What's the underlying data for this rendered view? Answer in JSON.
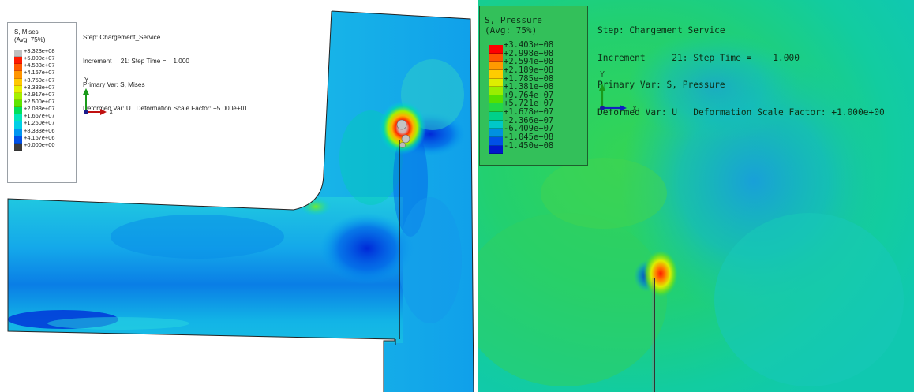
{
  "left": {
    "legend": {
      "title_line1": "S, Mises",
      "title_line2": "(Avg: 75%)",
      "labels": [
        "+3.323e+08",
        "+5.000e+07",
        "+4.583e+07",
        "+4.167e+07",
        "+3.750e+07",
        "+3.333e+07",
        "+2.917e+07",
        "+2.500e+07",
        "+2.083e+07",
        "+1.667e+07",
        "+1.250e+07",
        "+8.333e+06",
        "+4.167e+06",
        "+0.000e+00"
      ],
      "colors": [
        "#c0c0c0",
        "#ff1a00",
        "#ff5a00",
        "#ff9500",
        "#ffc800",
        "#e6f000",
        "#a6f000",
        "#5ee600",
        "#00e05a",
        "#00e6b8",
        "#00cfe6",
        "#0096f0",
        "#0050e6",
        "#3c3c3c"
      ]
    },
    "info": {
      "step": "Step: Chargement_Service",
      "increment": "Increment     21: Step Time =    1.000",
      "primary": "Primary Var: S, Mises",
      "deformed": "Deformed Var: U   Deformation Scale Factor: +5.000e+01"
    },
    "axes": {
      "y": "Y",
      "x": "X"
    }
  },
  "right": {
    "legend": {
      "title_line1": "S, Pressure",
      "title_line2": "(Avg: 75%)",
      "labels": [
        "+3.403e+08",
        "+2.998e+08",
        "+2.594e+08",
        "+2.189e+08",
        "+1.785e+08",
        "+1.381e+08",
        "+9.764e+07",
        "+5.721e+07",
        "+1.678e+07",
        "-2.366e+07",
        "-6.409e+07",
        "-1.045e+08",
        "-1.450e+08"
      ],
      "colors": [
        "#ff0000",
        "#ff5500",
        "#ff9900",
        "#ffcc00",
        "#ddee00",
        "#99ee00",
        "#55e000",
        "#22d844",
        "#00d08a",
        "#00c8c8",
        "#0090e0",
        "#0050e6",
        "#0018cc"
      ]
    },
    "info": {
      "step": "Step: Chargement_Service",
      "increment": "Increment     21: Step Time =    1.000",
      "primary": "Primary Var: S, Pressure",
      "deformed": "Deformed Var: U   Deformation Scale Factor: +1.000e+00"
    },
    "axes": {
      "y": "Y",
      "x": "X"
    }
  }
}
